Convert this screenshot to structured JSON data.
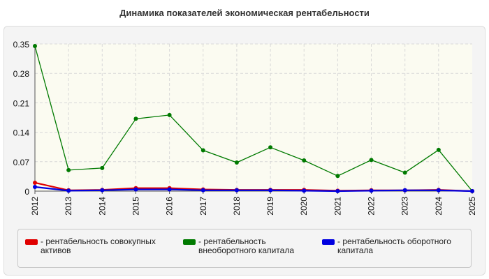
{
  "chart_data": {
    "type": "line",
    "title": "Динамика показателей экономическая рентабельности",
    "xlabel": "",
    "ylabel": "",
    "categories": [
      "2012",
      "2013",
      "2014",
      "2015",
      "2016",
      "2017",
      "2018",
      "2019",
      "2020",
      "2021",
      "2022",
      "2023",
      "2024",
      "2025"
    ],
    "ylim": [
      0,
      0.35
    ],
    "yticks": [
      "0",
      "0.07",
      "0.14",
      "0.21",
      "0.28",
      "0.35"
    ],
    "grid": true,
    "legend_position": "bottom",
    "series": [
      {
        "name": "- рентабельность совокупных активов",
        "color": "#e00000",
        "values": [
          0.02,
          0.002,
          0.003,
          0.007,
          0.007,
          0.004,
          0.003,
          0.003,
          0.003,
          0.001,
          0.002,
          0.002,
          0.003,
          0.0
        ]
      },
      {
        "name": "- рентабельность внеоборотного капитала",
        "color": "#007a00",
        "values": [
          0.345,
          0.05,
          0.055,
          0.172,
          0.181,
          0.097,
          0.068,
          0.104,
          0.073,
          0.036,
          0.074,
          0.044,
          0.098,
          0.0
        ]
      },
      {
        "name": "- рентабельность оборотного капитала",
        "color": "#0000e0",
        "values": [
          0.01,
          0.001,
          0.002,
          0.004,
          0.004,
          0.002,
          0.002,
          0.002,
          0.001,
          0.0,
          0.001,
          0.002,
          0.002,
          0.0
        ]
      }
    ]
  }
}
